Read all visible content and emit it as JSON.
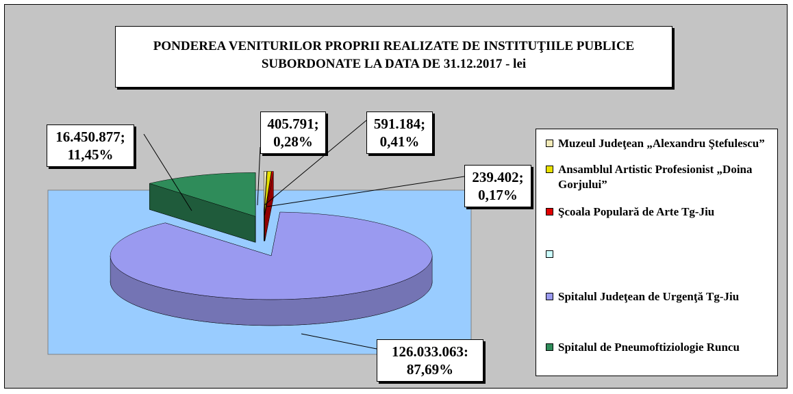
{
  "chart_data": {
    "type": "pie",
    "title": "PONDEREA VENITURILOR  PROPRII  REALIZATE  DE INSTITUŢIILE PUBLICE SUBORDONATE LA DATA DE 31.12.2017 - lei",
    "categories": [
      "Muzeul Judeţean „Alexandru Ştefulescu”",
      "Ansamblul Artistic Profesionist „Doina Gorjului”",
      "Şcoala Populară de Arte Tg-Jiu",
      null,
      "Spitalul Judeţean de Urgenţă Tg-Jiu",
      "Spitalul de Pneumoftiziologie Runcu"
    ],
    "values": [
      405791,
      591184,
      239402,
      null,
      126033063,
      16450877
    ],
    "value_labels": [
      "405.791;\n0,28%",
      "591.184;\n0,41%",
      "239.402;\n0,17%",
      null,
      "126.033.063:\n87,69%",
      "16.450.877;\n11,45%"
    ],
    "colors": [
      "#f2eab8",
      "#e8e000",
      "#e00000",
      "#ccffff",
      "#9a9af0",
      "#2f8c5a"
    ],
    "legend": "right"
  }
}
